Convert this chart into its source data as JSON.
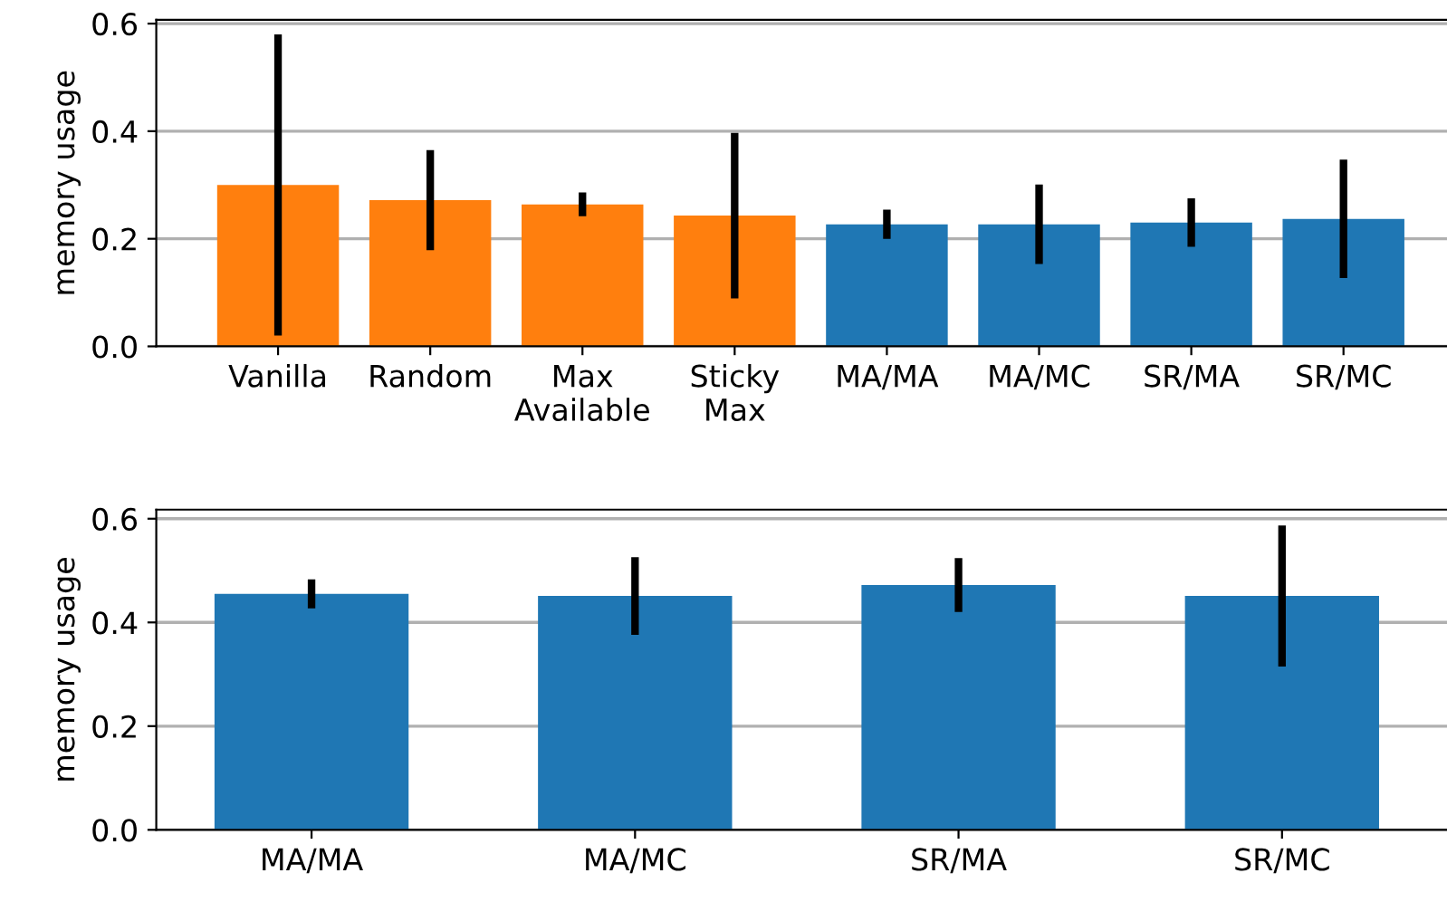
{
  "chart_data": [
    {
      "type": "bar",
      "ylabel": "memory usage",
      "categories": [
        "Vanilla",
        "Random",
        "Max\nAvailable",
        "Sticky\nMax",
        "MA/MA",
        "MA/MC",
        "SR/MA",
        "SR/MC"
      ],
      "values": [
        0.3,
        0.272,
        0.264,
        0.243,
        0.227,
        0.227,
        0.23,
        0.237
      ],
      "errors": [
        0.28,
        0.093,
        0.022,
        0.154,
        0.027,
        0.074,
        0.045,
        0.11
      ],
      "colors": [
        "#ff7f0e",
        "#ff7f0e",
        "#ff7f0e",
        "#ff7f0e",
        "#1f77b4",
        "#1f77b4",
        "#1f77b4",
        "#1f77b4"
      ],
      "ylim": [
        0,
        0.607
      ],
      "yticks": [
        {
          "value": 0,
          "label": "0.0"
        },
        0.2,
        0.4,
        0.6
      ],
      "grid": "y"
    },
    {
      "type": "bar",
      "ylabel": "memory usage",
      "categories": [
        "MA/MA",
        "MA/MC",
        "SR/MA",
        "SR/MC"
      ],
      "values": [
        0.455,
        0.451,
        0.472,
        0.451
      ],
      "errors": [
        0.028,
        0.075,
        0.052,
        0.136
      ],
      "colors": [
        "#1f77b4",
        "#1f77b4",
        "#1f77b4",
        "#1f77b4"
      ],
      "ylim": [
        0,
        0.6175
      ],
      "yticks": [
        {
          "value": 0,
          "label": "0.0"
        },
        0.2,
        0.4,
        0.6
      ],
      "grid": "y"
    }
  ]
}
